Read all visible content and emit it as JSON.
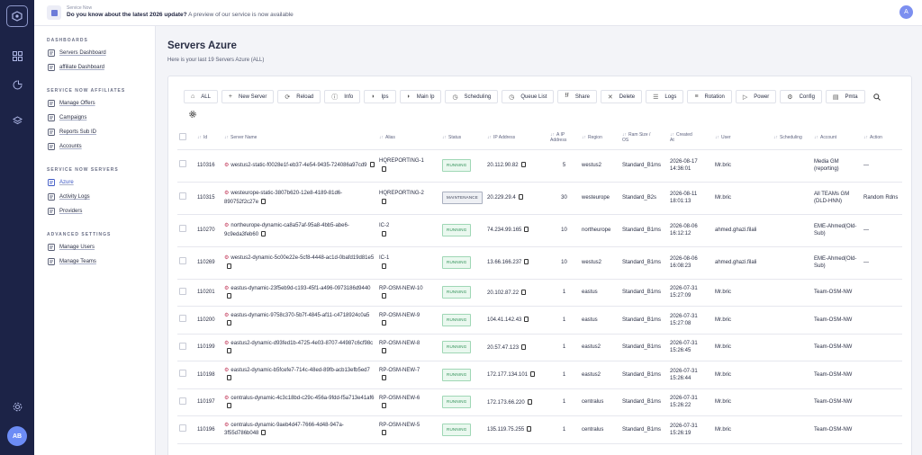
{
  "banner": {
    "label": "Service Now",
    "headline": "Do you know about the latest 2026 update?",
    "subline": "A preview of our service is now available"
  },
  "user_initial": "A",
  "rail_avatar": "AB",
  "sidebar": {
    "sections": [
      {
        "title": "DASHBOARDS",
        "items": [
          {
            "label": "Servers Dashboard",
            "icon": "dashboard-icon"
          },
          {
            "label": "affiliate Dashboard",
            "icon": "link-icon"
          }
        ]
      },
      {
        "title": "SERVICE NOW AFFILIATES",
        "items": [
          {
            "label": "Manage Offers",
            "icon": "offers-icon"
          },
          {
            "label": "Campaigns",
            "icon": "campaign-icon"
          },
          {
            "label": "Reports Sub ID",
            "icon": "report-icon"
          },
          {
            "label": "Accounts",
            "icon": "accounts-icon"
          }
        ]
      },
      {
        "title": "SERVICE NOW SERVERS",
        "items": [
          {
            "label": "Azure",
            "icon": "azure-icon"
          },
          {
            "label": "Activity Logs",
            "icon": "activity-icon"
          },
          {
            "label": "Providers",
            "icon": "providers-icon"
          }
        ]
      },
      {
        "title": "ADVANCED SETTINGS",
        "items": [
          {
            "label": "Manage Users",
            "icon": "users-icon"
          },
          {
            "label": "Manage Teams",
            "icon": "teams-icon"
          }
        ]
      }
    ]
  },
  "page": {
    "title": "Servers Azure",
    "subtitle": "Here is your last 19 Servers Azure (ALL)"
  },
  "toolbar": [
    {
      "label": "ALL",
      "icon": "⌂"
    },
    {
      "label": "New Server",
      "icon": "+"
    },
    {
      "label": "Reload",
      "icon": "⟳"
    },
    {
      "label": "Info",
      "icon": "ⓘ"
    },
    {
      "label": "Ips",
      "icon": "◗"
    },
    {
      "label": "Main Ip",
      "icon": "◗"
    },
    {
      "label": "Scheduling",
      "icon": "◷"
    },
    {
      "label": "Queue List",
      "icon": "◷"
    },
    {
      "label": "Share",
      "icon": "⭿"
    },
    {
      "label": "Delete",
      "icon": "✕"
    },
    {
      "label": "Logs",
      "icon": "☰"
    },
    {
      "label": "Rotation",
      "icon": "≡"
    },
    {
      "label": "Power",
      "icon": "▷"
    },
    {
      "label": "Config",
      "icon": "⚙"
    },
    {
      "label": "Pmta",
      "icon": "▤"
    }
  ],
  "table": {
    "headers": {
      "id": "Id",
      "name": "Server Name",
      "alias": "Alias",
      "status": "Status",
      "ip": "IP Address",
      "ipcount_1": "A IP",
      "ipcount_2": "Address",
      "region": "Region",
      "ram_1": "Ram Size /",
      "ram_2": "OS",
      "created_1": "Created",
      "created_2": "At",
      "user": "User",
      "scheduling": "Scheduling",
      "account": "Account",
      "action": "Action"
    },
    "rows": [
      {
        "id": "110316",
        "name": "westus2-static-f0028e1f-eb37-4e54-9435-724086a97cd9",
        "alias": "HQREPORTING-1",
        "status": "RUNNING",
        "ip": "20.112.90.82",
        "count": "5",
        "region": "westus2",
        "ram": "Standard_B1ms",
        "created": "2026-08-17 14:36:01",
        "user": "Mr.bric",
        "sched": "",
        "account": "Media GM (reporting)",
        "action": "—"
      },
      {
        "id": "110315",
        "name": "westeurope-static-3807b620-12e8-4189-81d6-890752f2c27e",
        "alias": "HQREPORTING-2",
        "status": "MAINTENANCE",
        "ip": "20.229.29.4",
        "count": "30",
        "region": "westeurope",
        "ram": "Standard_B2s",
        "created": "2026-08-11 18:01:13",
        "user": "Mr.bric",
        "sched": "",
        "account": "All TEAMs GM (DLD-HNN)",
        "action": "Random Rdns"
      },
      {
        "id": "110270",
        "name": "northeurope-dynamic-ca8a57af-95a8-4bb5-abe6-9c9eda3feb60",
        "alias": "IC-2",
        "status": "RUNNING",
        "ip": "74.234.99.165",
        "count": "10",
        "region": "northeurope",
        "ram": "Standard_B1ms",
        "created": "2026-08-06 16:12:12",
        "user": "ahmed.ghazi.filali",
        "sched": "",
        "account": "EME-Ahmed(Old-Sub)",
        "action": "—"
      },
      {
        "id": "110269",
        "name": "westus2-dynamic-5c00e22e-5cf8-4448-ac1d-0bafd19d81e5",
        "alias": "IC-1",
        "status": "RUNNING",
        "ip": "13.66.166.237",
        "count": "10",
        "region": "westus2",
        "ram": "Standard_B1ms",
        "created": "2026-08-06 16:08:23",
        "user": "ahmed.ghazi.filali",
        "sched": "",
        "account": "EME-Ahmed(Old-Sub)",
        "action": "—"
      },
      {
        "id": "110201",
        "name": "eastus-dynamic-23f5eb9d-c193-45f1-a496-0973186d9440",
        "alias": "RP-OSM-NEW-10",
        "status": "RUNNING",
        "ip": "20.102.87.22",
        "count": "1",
        "region": "eastus",
        "ram": "Standard_B1ms",
        "created": "2026-07-31 15:27:09",
        "user": "Mr.bric",
        "sched": "",
        "account": "Team-OSM-NW",
        "action": ""
      },
      {
        "id": "110200",
        "name": "eastus-dynamic-9758c370-5b7f-4845-af11-c4718924c0a5",
        "alias": "RP-OSM-NEW-9",
        "status": "RUNNING",
        "ip": "104.41.142.43",
        "count": "1",
        "region": "eastus",
        "ram": "Standard_B1ms",
        "created": "2026-07-31 15:27:08",
        "user": "Mr.bric",
        "sched": "",
        "account": "Team-OSM-NW",
        "action": ""
      },
      {
        "id": "110199",
        "name": "eastus2-dynamic-d93fed1b-4725-4e03-8707-44987c6cf98c",
        "alias": "RP-OSM-NEW-8",
        "status": "RUNNING",
        "ip": "20.57.47.123",
        "count": "1",
        "region": "eastus2",
        "ram": "Standard_B1ms",
        "created": "2026-07-31 15:26:45",
        "user": "Mr.bric",
        "sched": "",
        "account": "Team-OSM-NW",
        "action": ""
      },
      {
        "id": "110198",
        "name": "eastus2-dynamic-b5fcefe7-714c-48ed-89fb-acb13efb5ed7",
        "alias": "RP-OSM-NEW-7",
        "status": "RUNNING",
        "ip": "172.177.134.101",
        "count": "1",
        "region": "eastus2",
        "ram": "Standard_B1ms",
        "created": "2026-07-31 15:26:44",
        "user": "Mr.bric",
        "sched": "",
        "account": "Team-OSM-NW",
        "action": ""
      },
      {
        "id": "110197",
        "name": "centralus-dynamic-4c3c18bd-c29c-456a-9fdd-f5a713e41af6",
        "alias": "RP-OSM-NEW-6",
        "status": "RUNNING",
        "ip": "172.173.66.220",
        "count": "1",
        "region": "centralus",
        "ram": "Standard_B1ms",
        "created": "2026-07-31 15:26:22",
        "user": "Mr.bric",
        "sched": "",
        "account": "Team-OSM-NW",
        "action": ""
      },
      {
        "id": "110196",
        "name": "centralus-dynamic-9aeb4d47-7666-4d48-947a-3f55d786b048",
        "alias": "RP-OSM-NEW-5",
        "status": "RUNNING",
        "ip": "135.119.75.255",
        "count": "1",
        "region": "centralus",
        "ram": "Standard_B1ms",
        "created": "2026-07-31 15:26:19",
        "user": "Mr.bric",
        "sched": "",
        "account": "Team-OSM-NW",
        "action": ""
      }
    ]
  }
}
